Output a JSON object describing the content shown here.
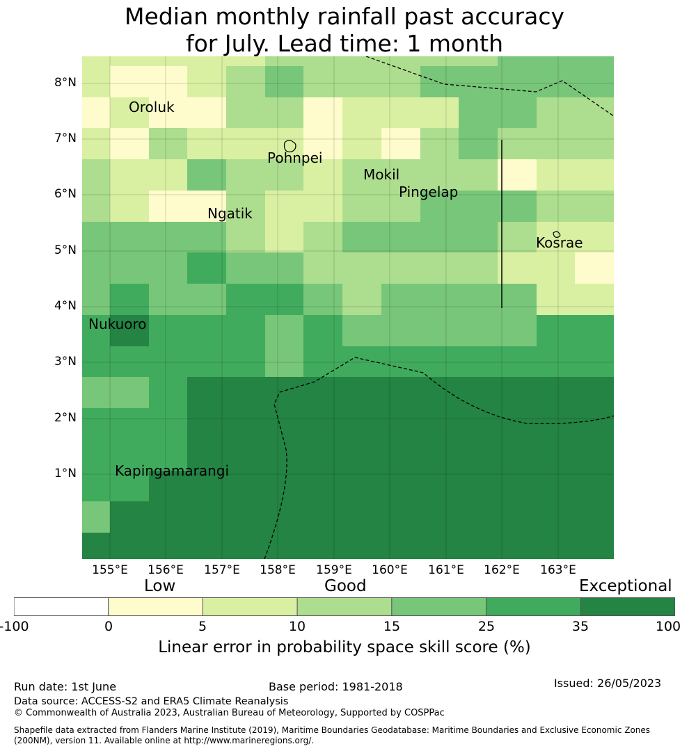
{
  "title_lines": [
    "Median monthly rainfall past accuracy",
    "for July. Lead time: 1 month"
  ],
  "map": {
    "lon_labels": [
      "155°E",
      "156°E",
      "157°E",
      "158°E",
      "159°E",
      "160°E",
      "161°E",
      "162°E",
      "163°E"
    ],
    "lat_labels": [
      "8°N",
      "7°N",
      "6°N",
      "5°N",
      "4°N",
      "3°N",
      "2°N",
      "1°N"
    ],
    "places": [
      {
        "name": "Oroluk"
      },
      {
        "name": "Pohnpei"
      },
      {
        "name": "Mokil"
      },
      {
        "name": "Pingelap"
      },
      {
        "name": "Ngatik"
      },
      {
        "name": "Kosrae"
      },
      {
        "name": "Nukuoro"
      },
      {
        "name": "Kapingamarangi"
      }
    ],
    "grid_note": "cell category index 0-6 per row, top to bottom",
    "grid": [
      [
        2,
        2,
        2,
        2,
        2,
        3,
        3,
        3,
        3,
        3,
        3,
        4,
        4,
        4
      ],
      [
        2,
        1,
        1,
        2,
        3,
        4,
        3,
        3,
        3,
        4,
        4,
        4,
        4,
        4
      ],
      [
        1,
        2,
        1,
        1,
        3,
        3,
        1,
        2,
        2,
        2,
        4,
        4,
        3,
        3
      ],
      [
        2,
        1,
        3,
        2,
        2,
        2,
        1,
        2,
        1,
        3,
        4,
        3,
        3,
        3
      ],
      [
        3,
        2,
        2,
        4,
        3,
        3,
        2,
        3,
        3,
        3,
        3,
        1,
        2,
        2
      ],
      [
        3,
        2,
        1,
        1,
        3,
        2,
        2,
        3,
        3,
        4,
        4,
        4,
        3,
        3
      ],
      [
        4,
        4,
        4,
        4,
        3,
        2,
        3,
        4,
        4,
        4,
        4,
        3,
        2,
        2
      ],
      [
        4,
        4,
        4,
        5,
        4,
        4,
        3,
        3,
        3,
        3,
        3,
        2,
        2,
        1
      ],
      [
        4,
        5,
        4,
        4,
        5,
        5,
        4,
        3,
        4,
        4,
        4,
        4,
        2,
        2
      ],
      [
        5,
        6,
        5,
        5,
        5,
        4,
        5,
        4,
        4,
        4,
        4,
        4,
        5,
        5
      ],
      [
        5,
        5,
        5,
        5,
        5,
        4,
        5,
        5,
        5,
        5,
        5,
        5,
        5,
        5
      ],
      [
        4,
        4,
        5,
        6,
        6,
        6,
        6,
        6,
        6,
        6,
        6,
        6,
        6,
        6
      ],
      [
        5,
        5,
        5,
        6,
        6,
        6,
        6,
        6,
        6,
        6,
        6,
        6,
        6,
        6
      ],
      [
        5,
        5,
        5,
        6,
        6,
        6,
        6,
        6,
        6,
        6,
        6,
        6,
        6,
        6
      ],
      [
        5,
        5,
        6,
        6,
        6,
        6,
        6,
        6,
        6,
        6,
        6,
        6,
        6,
        6
      ],
      [
        4,
        6,
        6,
        6,
        6,
        6,
        6,
        6,
        6,
        6,
        6,
        6,
        6,
        6
      ],
      [
        6,
        6,
        6,
        6,
        6,
        6,
        6,
        6,
        6,
        6,
        6,
        6,
        6,
        6
      ]
    ]
  },
  "legend": {
    "categories": [
      "Low",
      "Good",
      "Exceptional"
    ],
    "colors": [
      "#ffffff",
      "#fefccc",
      "#d9f0a3",
      "#addd8e",
      "#78c679",
      "#41ab5d",
      "#238443"
    ],
    "ticks": [
      "-100",
      "0",
      "5",
      "10",
      "15",
      "25",
      "35",
      "100"
    ],
    "title": "Linear error in probability space skill score (%)"
  },
  "footer": {
    "run_date": "Run date: 1st June",
    "base_period": "Base period: 1981-2018",
    "issued": "Issued: 26/05/2023",
    "data_source": "Data source: ACCESS-S2 and ERA5 Climate Reanalysis",
    "copyright": "© Commonwealth of Australia 2023, Australian Bureau of Meteorology, Supported by COSPPac",
    "shapefile": "Shapefile data extracted from Flanders Marine Institute (2019), Maritime Boundaries Geodatabase: Maritime Boundaries and Exclusive Economic Zones (200NM), version 11. Available online at http://www.marineregions.org/."
  }
}
